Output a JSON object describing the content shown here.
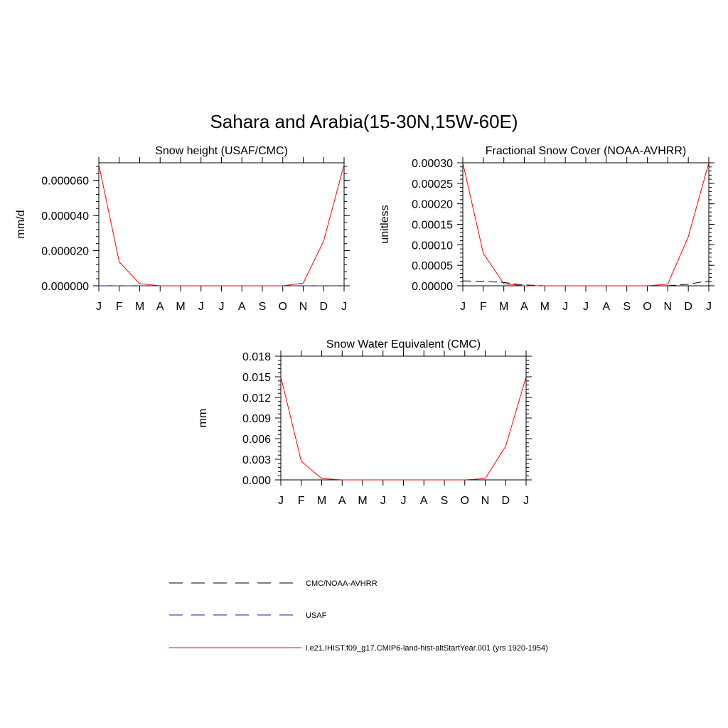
{
  "figure_title": "Sahara and Arabia(15-30N,15W-60E)",
  "legend": [
    {
      "label": "CMC/NOAA-AVHRR",
      "color": "#000000",
      "dash": "dashed"
    },
    {
      "label": "USAF",
      "color": "#1a1aa6",
      "dash": "dashed"
    },
    {
      "label": "i.e21.IHIST.f09_g17.CMIP6-land-hist-altStartYear.001 (yrs 1920-1954)",
      "color": "#ff0000",
      "dash": "solid"
    }
  ],
  "chart_data": [
    {
      "type": "line",
      "title": "Snow height (USAF/CMC)",
      "xlabel": "",
      "ylabel": "mm/d",
      "categories": [
        "J",
        "F",
        "M",
        "A",
        "M",
        "J",
        "J",
        "A",
        "S",
        "O",
        "N",
        "D",
        "J"
      ],
      "yticks": [
        "0.000000",
        "0.000020",
        "0.000040",
        "0.000060"
      ],
      "ytick_values": [
        0,
        2e-05,
        4e-05,
        6e-05
      ],
      "ylim": [
        0,
        7e-05
      ],
      "series": [
        {
          "name": "CMC/NOAA-AVHRR",
          "color": "#000000",
          "dash": "dashed",
          "values": [
            0,
            0,
            0,
            0,
            0,
            0,
            0,
            0,
            0,
            0,
            0,
            0,
            0
          ]
        },
        {
          "name": "USAF",
          "color": "#1a1aa6",
          "dash": "dashed",
          "values": [
            0,
            0,
            0,
            0,
            0,
            0,
            0,
            0,
            0,
            0,
            0,
            0,
            0
          ]
        },
        {
          "name": "i.e21.IHIST.f09_g17.CMIP6-land-hist-altStartYear.001 (yrs 1920-1954)",
          "color": "#ff0000",
          "dash": "solid",
          "values": [
            6.9e-05,
            1.35e-05,
            1.2e-06,
            0,
            0,
            0,
            0,
            0,
            0,
            0,
            1.5e-06,
            2.55e-05,
            6.9e-05
          ]
        }
      ]
    },
    {
      "type": "line",
      "title": "Fractional Snow Cover (NOAA-AVHRR)",
      "xlabel": "",
      "ylabel": "unitless",
      "categories": [
        "J",
        "F",
        "M",
        "A",
        "M",
        "J",
        "J",
        "A",
        "S",
        "O",
        "N",
        "D",
        "J"
      ],
      "yticks": [
        "0.00000",
        "0.00005",
        "0.00010",
        "0.00015",
        "0.00020",
        "0.00025",
        "0.00030"
      ],
      "ytick_values": [
        0,
        5e-05,
        0.0001,
        0.00015,
        0.0002,
        0.00025,
        0.0003
      ],
      "ylim": [
        0,
        0.0003
      ],
      "series": [
        {
          "name": "CMC/NOAA-AVHRR",
          "color": "#000000",
          "dash": "dashed",
          "values": [
            1.2e-05,
            1.1e-05,
            8e-06,
            2e-06,
            0,
            0,
            0,
            0,
            0,
            0,
            0,
            4e-06,
            1.2e-05
          ]
        },
        {
          "name": "i.e21.IHIST.f09_g17.CMIP6-land-hist-altStartYear.001 (yrs 1920-1954)",
          "color": "#ff0000",
          "dash": "solid",
          "values": [
            0.0003,
            7.9e-05,
            5e-06,
            0,
            0,
            0,
            0,
            0,
            0,
            0,
            4e-06,
            0.00012,
            0.0003
          ]
        }
      ]
    },
    {
      "type": "line",
      "title": "Snow Water Equivalent (CMC)",
      "xlabel": "",
      "ylabel": "mm",
      "categories": [
        "J",
        "F",
        "M",
        "A",
        "M",
        "J",
        "J",
        "A",
        "S",
        "O",
        "N",
        "D",
        "J"
      ],
      "yticks": [
        "0.000",
        "0.003",
        "0.006",
        "0.009",
        "0.012",
        "0.015",
        "0.018"
      ],
      "ytick_values": [
        0,
        0.003,
        0.006,
        0.009,
        0.012,
        0.015,
        0.018
      ],
      "ylim": [
        0,
        0.018
      ],
      "series": [
        {
          "name": "CMC/NOAA-AVHRR",
          "color": "#000000",
          "dash": "dashed",
          "values": [
            0,
            0,
            0,
            0,
            0,
            0,
            0,
            0,
            0,
            0,
            0,
            0,
            0
          ]
        },
        {
          "name": "i.e21.IHIST.f09_g17.CMIP6-land-hist-altStartYear.001 (yrs 1920-1954)",
          "color": "#ff0000",
          "dash": "solid",
          "values": [
            0.015,
            0.0027,
            0.0002,
            0,
            0,
            0,
            0,
            0,
            0,
            0,
            0.0002,
            0.0049,
            0.015
          ]
        }
      ]
    }
  ]
}
